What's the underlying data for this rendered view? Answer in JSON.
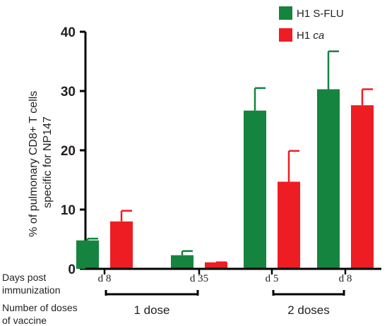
{
  "chart_data": {
    "type": "bar",
    "title": "",
    "ylabel_lines": [
      "% of pulmonary CD8+ T cells",
      "specific for NP147"
    ],
    "ylim": [
      0,
      40
    ],
    "yticks": [
      0,
      10,
      20,
      30,
      40
    ],
    "categories": [
      "d 8",
      "d 35",
      "d 5",
      "d 8"
    ],
    "groups": [
      {
        "label": "1 dose",
        "categories": [
          0,
          1
        ]
      },
      {
        "label": "2 doses",
        "categories": [
          2,
          3
        ]
      }
    ],
    "row_labels": {
      "days": [
        "Days post",
        "immunization"
      ],
      "doses": [
        "Number of doses",
        "of vaccine"
      ]
    },
    "series": [
      {
        "name": "H1 S-FLU",
        "name_main": "H1 S-FLU",
        "name_italic": "",
        "color": "#15843f",
        "values": [
          4.8,
          2.3,
          26.7,
          30.3
        ],
        "errors": [
          0.3,
          0.7,
          3.8,
          6.4
        ]
      },
      {
        "name": "H1 ca",
        "name_main": "H1 ",
        "name_italic": "ca",
        "color": "#ee1d23",
        "values": [
          8.0,
          1.1,
          14.7,
          27.6
        ],
        "errors": [
          1.8,
          0,
          5.2,
          2.7
        ]
      }
    ],
    "grid": false,
    "legend_position": "top-right"
  }
}
